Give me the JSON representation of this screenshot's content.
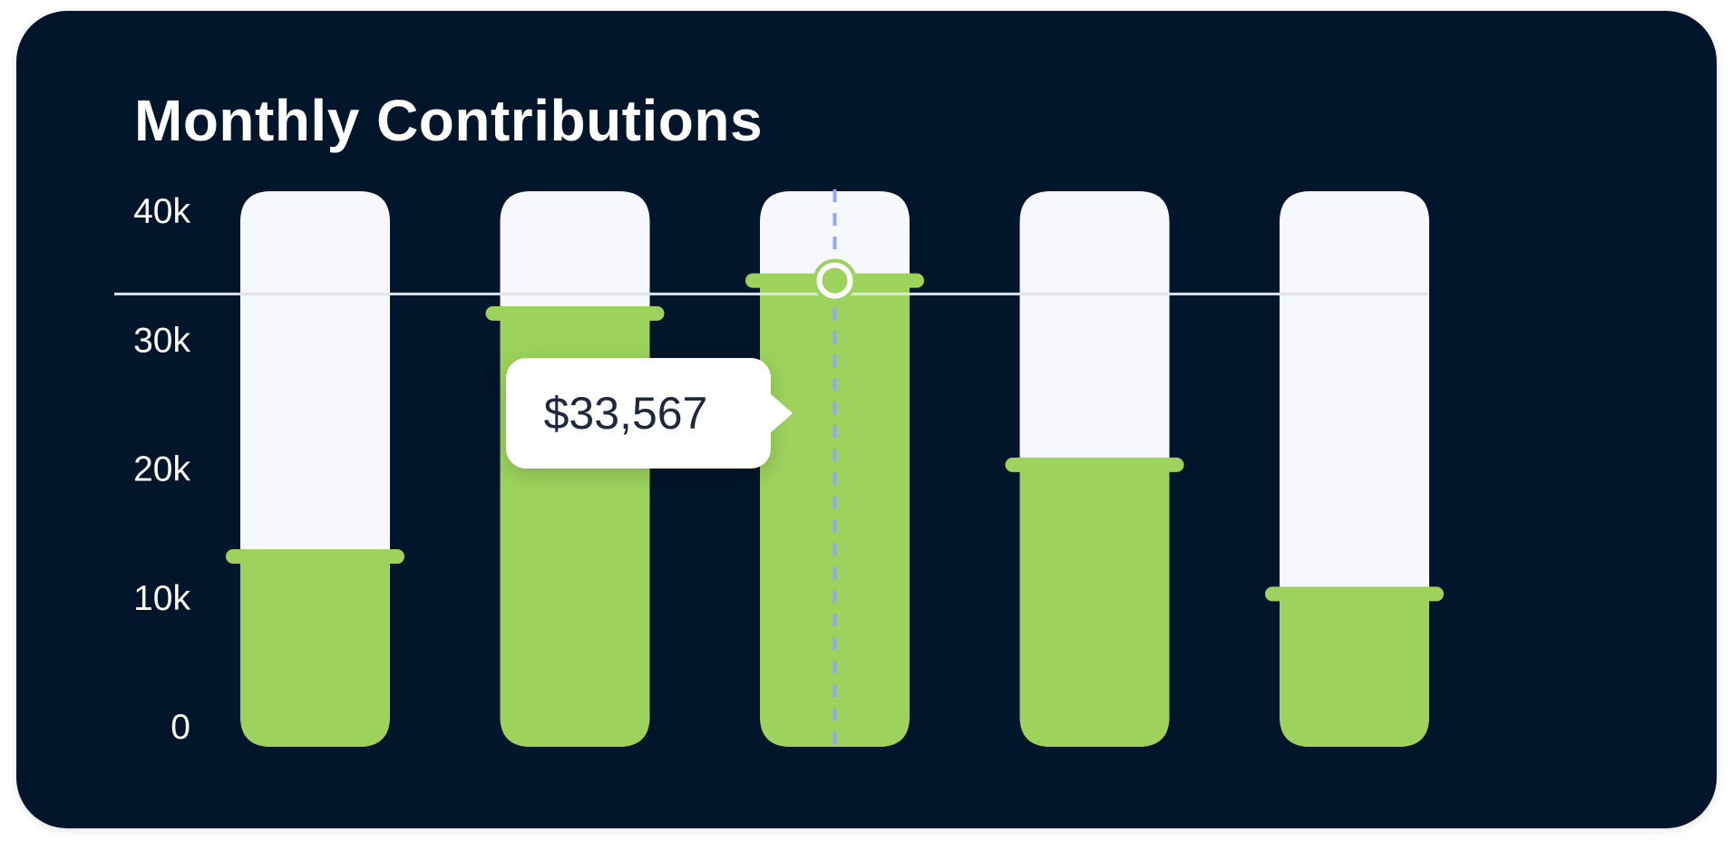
{
  "chart_data": {
    "type": "bar",
    "title": "Monthly Contributions",
    "xlabel": "",
    "ylabel": "",
    "ylim": [
      0,
      40000
    ],
    "yticks": [
      0,
      10000,
      20000,
      30000,
      40000
    ],
    "ytick_labels": [
      "0",
      "10k",
      "20k",
      "30k",
      "40k"
    ],
    "categories": [
      "",
      "",
      "",
      "",
      ""
    ],
    "values": [
      13700,
      31200,
      33567,
      20300,
      11000
    ],
    "reference_line": 32600,
    "highlighted_index": 2,
    "tooltip": "$33,567",
    "grid": false,
    "colors": {
      "background": "#01162b",
      "bar_fill": "#9dd35c",
      "bar_track": "#f6f8fd",
      "crosshair": "#8fa8f5",
      "reference_line": "#e2e4ea"
    }
  }
}
